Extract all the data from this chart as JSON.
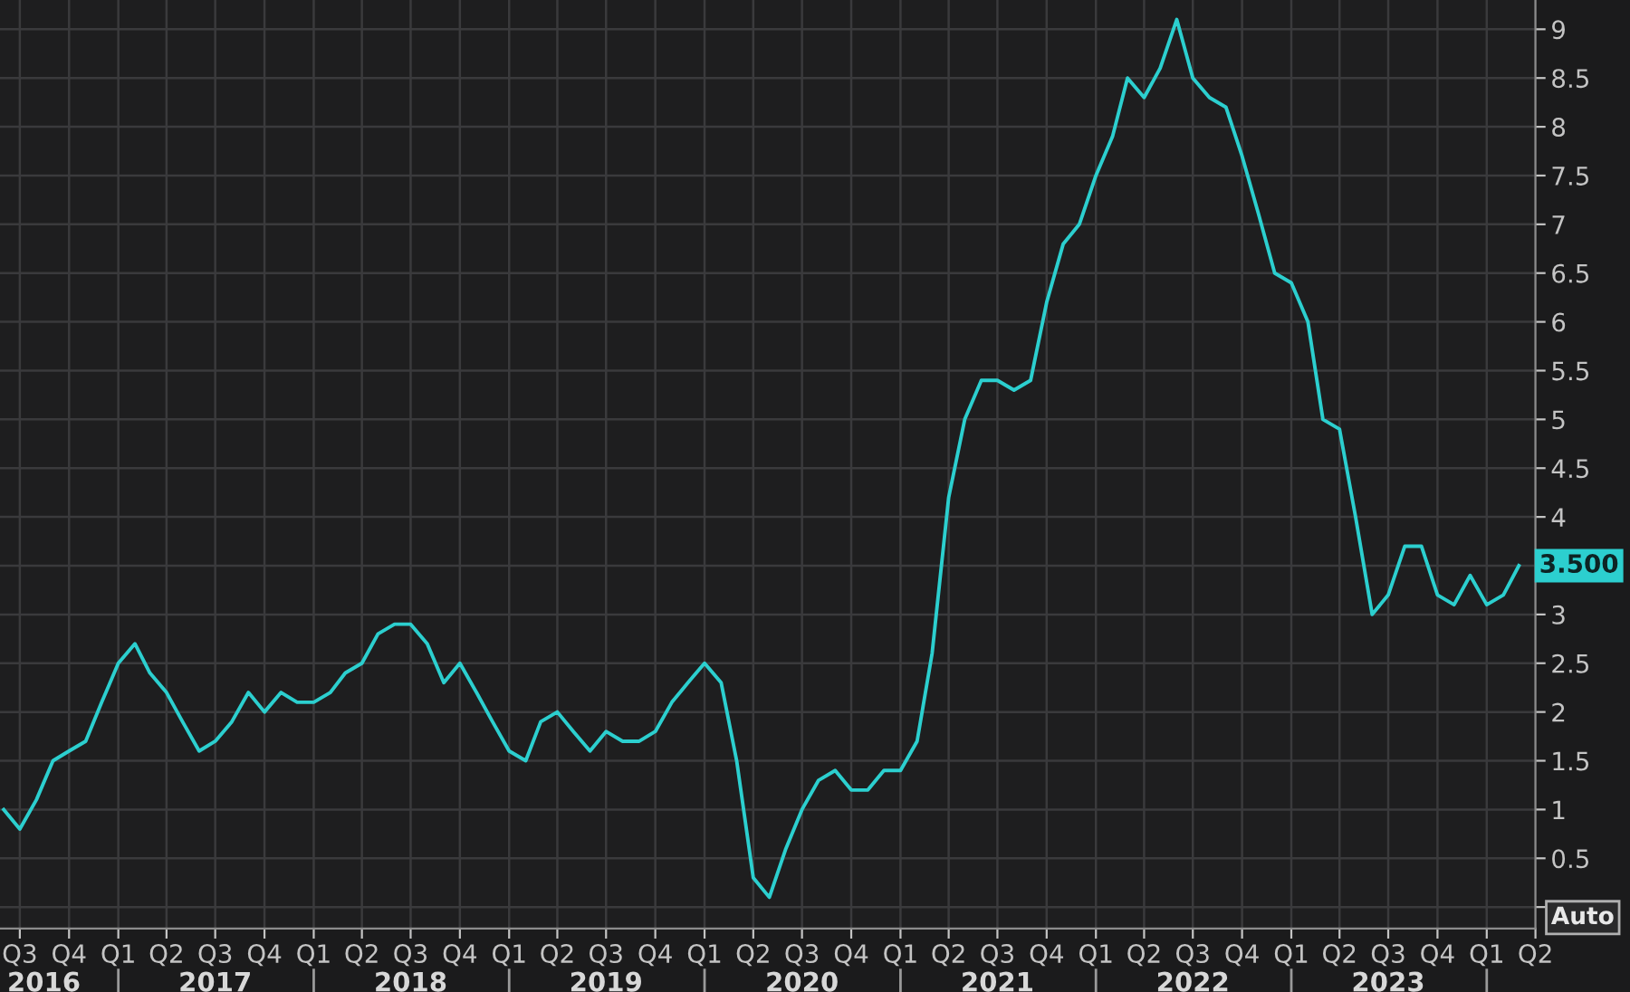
{
  "chart_data": {
    "type": "line",
    "x": [
      "2016-06",
      "2016-07",
      "2016-08",
      "2016-09",
      "2016-10",
      "2016-11",
      "2016-12",
      "2017-01",
      "2017-02",
      "2017-03",
      "2017-04",
      "2017-05",
      "2017-06",
      "2017-07",
      "2017-08",
      "2017-09",
      "2017-10",
      "2017-11",
      "2017-12",
      "2018-01",
      "2018-02",
      "2018-03",
      "2018-04",
      "2018-05",
      "2018-06",
      "2018-07",
      "2018-08",
      "2018-09",
      "2018-10",
      "2018-11",
      "2018-12",
      "2019-01",
      "2019-02",
      "2019-03",
      "2019-04",
      "2019-05",
      "2019-06",
      "2019-07",
      "2019-08",
      "2019-09",
      "2019-10",
      "2019-11",
      "2019-12",
      "2020-01",
      "2020-02",
      "2020-03",
      "2020-04",
      "2020-05",
      "2020-06",
      "2020-07",
      "2020-08",
      "2020-09",
      "2020-10",
      "2020-11",
      "2020-12",
      "2021-01",
      "2021-02",
      "2021-03",
      "2021-04",
      "2021-05",
      "2021-06",
      "2021-07",
      "2021-08",
      "2021-09",
      "2021-10",
      "2021-11",
      "2021-12",
      "2022-01",
      "2022-02",
      "2022-03",
      "2022-04",
      "2022-05",
      "2022-06",
      "2022-07",
      "2022-08",
      "2022-09",
      "2022-10",
      "2022-11",
      "2022-12",
      "2023-01",
      "2023-02",
      "2023-03",
      "2023-04",
      "2023-05",
      "2023-06",
      "2023-07",
      "2023-08",
      "2023-09",
      "2023-10",
      "2023-11",
      "2023-12",
      "2024-01",
      "2024-02",
      "2024-03"
    ],
    "series": [
      {
        "color": "#2ccfcf",
        "values": [
          1.0,
          0.8,
          1.1,
          1.5,
          1.6,
          1.7,
          2.1,
          2.5,
          2.7,
          2.4,
          2.2,
          1.9,
          1.6,
          1.7,
          1.9,
          2.2,
          2.0,
          2.2,
          2.1,
          2.1,
          2.2,
          2.4,
          2.5,
          2.8,
          2.9,
          2.9,
          2.7,
          2.3,
          2.5,
          2.2,
          1.9,
          1.6,
          1.5,
          1.9,
          2.0,
          1.8,
          1.6,
          1.8,
          1.7,
          1.7,
          1.8,
          2.1,
          2.3,
          2.5,
          2.3,
          1.5,
          0.3,
          0.1,
          0.6,
          1.0,
          1.3,
          1.4,
          1.2,
          1.2,
          1.4,
          1.4,
          1.7,
          2.6,
          4.2,
          5.0,
          5.4,
          5.4,
          5.3,
          5.4,
          6.2,
          6.8,
          7.0,
          7.5,
          7.9,
          8.5,
          8.3,
          8.6,
          9.1,
          8.5,
          8.3,
          8.2,
          7.7,
          7.1,
          6.5,
          6.4,
          6.0,
          5.0,
          4.9,
          4.0,
          3.0,
          3.2,
          3.7,
          3.7,
          3.2,
          3.1,
          3.4,
          3.1,
          3.2,
          3.5
        ],
        "value_labels": [
          null,
          null,
          null,
          null,
          null,
          null,
          null,
          null,
          null,
          null,
          null,
          null,
          null,
          null,
          null,
          null,
          null,
          null,
          null,
          null,
          null,
          null,
          null,
          null,
          null,
          null,
          null,
          null,
          null,
          null,
          null,
          null,
          null,
          null,
          null,
          null,
          null,
          null,
          null,
          null,
          null,
          null,
          null,
          null,
          null,
          null,
          null,
          null,
          null,
          null,
          null,
          null,
          null,
          null,
          null,
          null,
          null,
          null,
          null,
          null,
          null,
          null,
          null,
          null,
          null,
          null,
          null,
          null,
          null,
          null,
          null,
          null,
          null,
          null,
          null,
          null,
          null,
          null,
          null,
          null,
          null,
          null,
          null,
          null,
          null,
          null,
          null,
          null,
          null,
          null,
          null,
          null,
          null,
          "3.500"
        ]
      }
    ],
    "line_style": "solid",
    "xlim": [
      "2016-05-25",
      "2024-04-01"
    ],
    "xticks": [
      {
        "value": "2016-07-01",
        "label": "Q3"
      },
      {
        "value": "2016-10-01",
        "label": "Q4"
      },
      {
        "value": "2017-01-01",
        "label": "Q1"
      },
      {
        "value": "2017-04-01",
        "label": "Q2"
      },
      {
        "value": "2017-07-01",
        "label": "Q3"
      },
      {
        "value": "2017-10-01",
        "label": "Q4"
      },
      {
        "value": "2018-01-01",
        "label": "Q1"
      },
      {
        "value": "2018-04-01",
        "label": "Q2"
      },
      {
        "value": "2018-07-01",
        "label": "Q3"
      },
      {
        "value": "2018-10-01",
        "label": "Q4"
      },
      {
        "value": "2019-01-01",
        "label": "Q1"
      },
      {
        "value": "2019-04-01",
        "label": "Q2"
      },
      {
        "value": "2019-07-01",
        "label": "Q3"
      },
      {
        "value": "2019-10-01",
        "label": "Q4"
      },
      {
        "value": "2020-01-01",
        "label": "Q1"
      },
      {
        "value": "2020-04-01",
        "label": "Q2"
      },
      {
        "value": "2020-07-01",
        "label": "Q3"
      },
      {
        "value": "2020-10-01",
        "label": "Q4"
      },
      {
        "value": "2021-01-01",
        "label": "Q1"
      },
      {
        "value": "2021-04-01",
        "label": "Q2"
      },
      {
        "value": "2021-07-01",
        "label": "Q3"
      },
      {
        "value": "2021-10-01",
        "label": "Q4"
      },
      {
        "value": "2022-01-01",
        "label": "Q1"
      },
      {
        "value": "2022-04-01",
        "label": "Q2"
      },
      {
        "value": "2022-07-01",
        "label": "Q3"
      },
      {
        "value": "2022-10-01",
        "label": "Q4"
      },
      {
        "value": "2023-01-01",
        "label": "Q1"
      },
      {
        "value": "2023-04-01",
        "label": "Q2"
      },
      {
        "value": "2023-07-01",
        "label": "Q3"
      },
      {
        "value": "2023-10-01",
        "label": "Q4"
      },
      {
        "value": "2024-01-01",
        "label": "Q1"
      },
      {
        "value": "2024-04-01",
        "label": "Q2"
      }
    ],
    "x2lim": [
      "2016-05-25",
      "2024-04-01"
    ],
    "x2ticks": [
      {
        "value": "2016-08-15",
        "label": "2016"
      },
      {
        "value": "2017-01-01",
        "label": null
      },
      {
        "value": "2017-07-01",
        "label": "2017"
      },
      {
        "value": "2018-01-01",
        "label": null
      },
      {
        "value": "2018-07-01",
        "label": "2018"
      },
      {
        "value": "2019-01-01",
        "label": null
      },
      {
        "value": "2019-07-01",
        "label": "2019"
      },
      {
        "value": "2020-01-01",
        "label": null
      },
      {
        "value": "2020-07-01",
        "label": "2020"
      },
      {
        "value": "2021-01-01",
        "label": null
      },
      {
        "value": "2021-07-01",
        "label": "2021"
      },
      {
        "value": "2022-01-01",
        "label": null
      },
      {
        "value": "2022-07-01",
        "label": "2022"
      },
      {
        "value": "2023-01-01",
        "label": null
      },
      {
        "value": "2023-07-01",
        "label": "2023"
      },
      {
        "value": "2024-01-01",
        "label": null
      }
    ],
    "ylim": [
      -0.22,
      9.3
    ],
    "yticks": [
      {
        "value": 0,
        "label": null
      },
      0.5,
      1,
      1.5,
      2,
      2.5,
      3,
      {
        "value": 3.5,
        "label": null
      },
      4,
      4.5,
      5,
      5.5,
      6,
      6.5,
      7,
      7.5,
      8,
      8.5,
      9
    ],
    "grid": true,
    "annotations": [
      "Auto"
    ]
  }
}
